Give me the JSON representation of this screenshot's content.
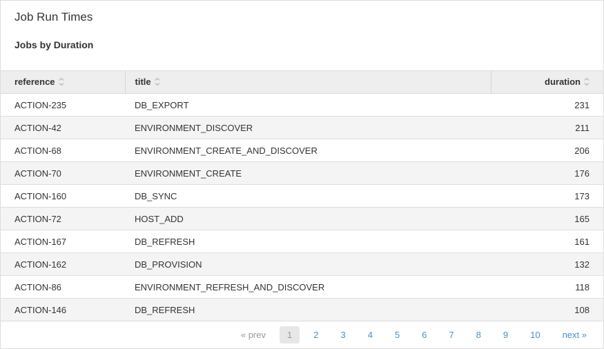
{
  "page": {
    "title": "Job Run Times",
    "subtitle": "Jobs by Duration"
  },
  "table": {
    "columns": [
      {
        "key": "reference",
        "label": "reference",
        "sortable": true
      },
      {
        "key": "title",
        "label": "title",
        "sortable": true
      },
      {
        "key": "duration",
        "label": "duration",
        "sortable": true
      }
    ],
    "rows": [
      {
        "reference": "ACTION-235",
        "title": "DB_EXPORT",
        "duration": 231
      },
      {
        "reference": "ACTION-42",
        "title": "ENVIRONMENT_DISCOVER",
        "duration": 211
      },
      {
        "reference": "ACTION-68",
        "title": "ENVIRONMENT_CREATE_AND_DISCOVER",
        "duration": 206
      },
      {
        "reference": "ACTION-70",
        "title": "ENVIRONMENT_CREATE",
        "duration": 176
      },
      {
        "reference": "ACTION-160",
        "title": "DB_SYNC",
        "duration": 173
      },
      {
        "reference": "ACTION-72",
        "title": "HOST_ADD",
        "duration": 165
      },
      {
        "reference": "ACTION-167",
        "title": "DB_REFRESH",
        "duration": 161
      },
      {
        "reference": "ACTION-162",
        "title": "DB_PROVISION",
        "duration": 132
      },
      {
        "reference": "ACTION-86",
        "title": "ENVIRONMENT_REFRESH_AND_DISCOVER",
        "duration": 118
      },
      {
        "reference": "ACTION-146",
        "title": "DB_REFRESH",
        "duration": 108
      }
    ]
  },
  "pagination": {
    "prev_label": "« prev",
    "next_label": "next »",
    "current_page": "1",
    "pages": [
      "1",
      "2",
      "3",
      "4",
      "5",
      "6",
      "7",
      "8",
      "9",
      "10"
    ]
  },
  "colors": {
    "link_blue": "#4393c9",
    "header_bg": "#eeeeee",
    "stripe_bg": "#f4f4f4",
    "border": "#dddddd",
    "muted_text": "#999999",
    "text": "#333333"
  }
}
